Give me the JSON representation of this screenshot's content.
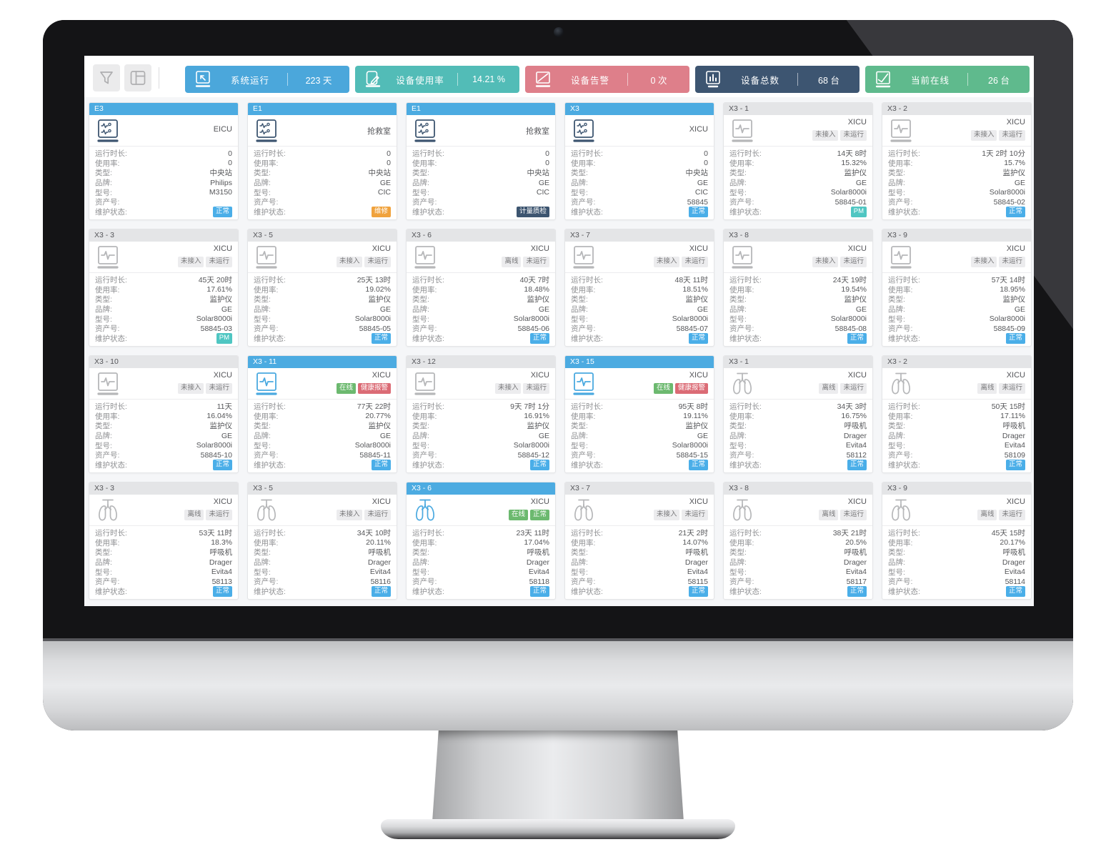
{
  "toolbar": {
    "buttons": [
      {
        "icon": "filter-icon"
      },
      {
        "icon": "layout-icon"
      }
    ],
    "stats": [
      {
        "icon": "system-run-icon",
        "label": "系统运行",
        "value": "223 天",
        "color": "#4BA7DB"
      },
      {
        "icon": "usage-edit-icon",
        "label": "设备使用率",
        "value": "14.21 %",
        "color": "#52BCB7"
      },
      {
        "icon": "alarm-icon",
        "label": "设备告警",
        "value": "0 次",
        "color": "#DE7F8A"
      },
      {
        "icon": "total-bar-chart-icon",
        "label": "设备总数",
        "value": "68 台",
        "color": "#3D5571"
      },
      {
        "icon": "online-check-icon",
        "label": "当前在线",
        "value": "26 台",
        "color": "#5FBA8D"
      }
    ]
  },
  "card_field_labels": {
    "runtime": "运行时长:",
    "usage": "使用率:",
    "type": "类型:",
    "brand": "品牌:",
    "model": "型号:",
    "asset": "资产号:",
    "maintenance": "维护状态:"
  },
  "field_order": [
    "runtime",
    "usage",
    "type",
    "brand",
    "model",
    "asset"
  ],
  "colors": {
    "card_header_active": "#4CABE1",
    "badge_blue": "#4AAEE8",
    "badge_orange": "#F0A23C",
    "badge_navy": "#3D5570",
    "badge_teal": "#4FC6C2",
    "badge_green": "#6CB96F",
    "badge_red": "#DB6B75",
    "badge_gray": "#ECECEE"
  },
  "cards": [
    {
      "id": "E3",
      "location": "EICU",
      "header": "blue",
      "icon": "central-station-icon",
      "badges": [],
      "runtime": "0",
      "usage": "0",
      "type": "中央站",
      "brand": "Philips",
      "model": "M3150",
      "asset": "",
      "maintenance": {
        "text": "正常",
        "style": "blue"
      }
    },
    {
      "id": "E1",
      "location": "抢救室",
      "header": "blue",
      "icon": "central-station-icon",
      "badges": [],
      "runtime": "0",
      "usage": "0",
      "type": "中央站",
      "brand": "GE",
      "model": "CIC",
      "asset": "",
      "maintenance": {
        "text": "维修",
        "style": "orange"
      }
    },
    {
      "id": "E1",
      "location": "抢救室",
      "header": "blue",
      "icon": "central-station-icon",
      "badges": [],
      "runtime": "0",
      "usage": "0",
      "type": "中央站",
      "brand": "GE",
      "model": "CIC",
      "asset": "",
      "maintenance": {
        "text": "计量质检",
        "style": "navy"
      }
    },
    {
      "id": "X3",
      "location": "XICU",
      "header": "blue",
      "icon": "central-station-icon",
      "badges": [],
      "runtime": "0",
      "usage": "0",
      "type": "中央站",
      "brand": "GE",
      "model": "CIC",
      "asset": "58845",
      "maintenance": {
        "text": "正常",
        "style": "blue"
      }
    },
    {
      "id": "X3 - 1",
      "location": "XICU",
      "header": "gray",
      "icon": "monitor-icon",
      "badges": [
        {
          "text": "未接入",
          "style": "gray"
        },
        {
          "text": "未运行",
          "style": "gray"
        }
      ],
      "runtime": "14天 8时",
      "usage": "15.32%",
      "type": "监护仪",
      "brand": "GE",
      "model": "Solar8000i",
      "asset": "58845-01",
      "maintenance": {
        "text": "PM",
        "style": "teal"
      }
    },
    {
      "id": "X3 - 2",
      "location": "XICU",
      "header": "gray",
      "icon": "monitor-icon",
      "badges": [
        {
          "text": "未接入",
          "style": "gray"
        },
        {
          "text": "未运行",
          "style": "gray"
        }
      ],
      "runtime": "1天 2时 10分",
      "usage": "15.7%",
      "type": "监护仪",
      "brand": "GE",
      "model": "Solar8000i",
      "asset": "58845-02",
      "maintenance": {
        "text": "正常",
        "style": "blue"
      }
    },
    {
      "id": "X3 - 3",
      "location": "XICU",
      "header": "gray",
      "icon": "monitor-icon",
      "badges": [
        {
          "text": "未接入",
          "style": "gray"
        },
        {
          "text": "未运行",
          "style": "gray"
        }
      ],
      "runtime": "45天 20时",
      "usage": "17.61%",
      "type": "监护仪",
      "brand": "GE",
      "model": "Solar8000i",
      "asset": "58845-03",
      "maintenance": {
        "text": "PM",
        "style": "teal"
      }
    },
    {
      "id": "X3 - 5",
      "location": "XICU",
      "header": "gray",
      "icon": "monitor-icon",
      "badges": [
        {
          "text": "未接入",
          "style": "gray"
        },
        {
          "text": "未运行",
          "style": "gray"
        }
      ],
      "runtime": "25天 13时",
      "usage": "19.02%",
      "type": "监护仪",
      "brand": "GE",
      "model": "Solar8000i",
      "asset": "58845-05",
      "maintenance": {
        "text": "正常",
        "style": "blue"
      }
    },
    {
      "id": "X3 - 6",
      "location": "XICU",
      "header": "gray",
      "icon": "monitor-icon",
      "badges": [
        {
          "text": "离线",
          "style": "gray"
        },
        {
          "text": "未运行",
          "style": "gray"
        }
      ],
      "runtime": "40天 7时",
      "usage": "18.48%",
      "type": "监护仪",
      "brand": "GE",
      "model": "Solar8000i",
      "asset": "58845-06",
      "maintenance": {
        "text": "正常",
        "style": "blue"
      }
    },
    {
      "id": "X3 - 7",
      "location": "XICU",
      "header": "gray",
      "icon": "monitor-icon",
      "badges": [
        {
          "text": "未接入",
          "style": "gray"
        },
        {
          "text": "未运行",
          "style": "gray"
        }
      ],
      "runtime": "48天 11时",
      "usage": "18.51%",
      "type": "监护仪",
      "brand": "GE",
      "model": "Solar8000i",
      "asset": "58845-07",
      "maintenance": {
        "text": "正常",
        "style": "blue"
      }
    },
    {
      "id": "X3 - 8",
      "location": "XICU",
      "header": "gray",
      "icon": "monitor-icon",
      "badges": [
        {
          "text": "未接入",
          "style": "gray"
        },
        {
          "text": "未运行",
          "style": "gray"
        }
      ],
      "runtime": "24天 19时",
      "usage": "19.54%",
      "type": "监护仪",
      "brand": "GE",
      "model": "Solar8000i",
      "asset": "58845-08",
      "maintenance": {
        "text": "正常",
        "style": "blue"
      }
    },
    {
      "id": "X3 - 9",
      "location": "XICU",
      "header": "gray",
      "icon": "monitor-icon",
      "badges": [
        {
          "text": "未接入",
          "style": "gray"
        },
        {
          "text": "未运行",
          "style": "gray"
        }
      ],
      "runtime": "57天 14时",
      "usage": "18.95%",
      "type": "监护仪",
      "brand": "GE",
      "model": "Solar8000i",
      "asset": "58845-09",
      "maintenance": {
        "text": "正常",
        "style": "blue"
      }
    },
    {
      "id": "X3 - 10",
      "location": "XICU",
      "header": "gray",
      "icon": "monitor-icon",
      "badges": [
        {
          "text": "未接入",
          "style": "gray"
        },
        {
          "text": "未运行",
          "style": "gray"
        }
      ],
      "runtime": "11天",
      "usage": "16.04%",
      "type": "监护仪",
      "brand": "GE",
      "model": "Solar8000i",
      "asset": "58845-10",
      "maintenance": {
        "text": "正常",
        "style": "blue"
      }
    },
    {
      "id": "X3 - 11",
      "location": "XICU",
      "header": "blue",
      "icon": "monitor-icon",
      "badges": [
        {
          "text": "在线",
          "style": "green"
        },
        {
          "text": "健康报警",
          "style": "red"
        }
      ],
      "runtime": "77天 22时",
      "usage": "20.77%",
      "type": "监护仪",
      "brand": "GE",
      "model": "Solar8000i",
      "asset": "58845-11",
      "maintenance": {
        "text": "正常",
        "style": "blue"
      }
    },
    {
      "id": "X3 - 12",
      "location": "XICU",
      "header": "gray",
      "icon": "monitor-icon",
      "badges": [
        {
          "text": "未接入",
          "style": "gray"
        },
        {
          "text": "未运行",
          "style": "gray"
        }
      ],
      "runtime": "9天 7时 1分",
      "usage": "16.91%",
      "type": "监护仪",
      "brand": "GE",
      "model": "Solar8000i",
      "asset": "58845-12",
      "maintenance": {
        "text": "正常",
        "style": "blue"
      }
    },
    {
      "id": "X3 - 15",
      "location": "XICU",
      "header": "blue",
      "icon": "monitor-icon",
      "badges": [
        {
          "text": "在线",
          "style": "green"
        },
        {
          "text": "健康报警",
          "style": "red"
        }
      ],
      "runtime": "95天 8时",
      "usage": "19.11%",
      "type": "监护仪",
      "brand": "GE",
      "model": "Solar8000i",
      "asset": "58845-15",
      "maintenance": {
        "text": "正常",
        "style": "blue"
      }
    },
    {
      "id": "X3 - 1",
      "location": "XICU",
      "header": "gray",
      "icon": "lungs-icon",
      "badges": [
        {
          "text": "离线",
          "style": "gray"
        },
        {
          "text": "未运行",
          "style": "gray"
        }
      ],
      "runtime": "34天 3时",
      "usage": "16.75%",
      "type": "呼吸机",
      "brand": "Drager",
      "model": "Evita4",
      "asset": "58112",
      "maintenance": {
        "text": "正常",
        "style": "blue"
      }
    },
    {
      "id": "X3 - 2",
      "location": "XICU",
      "header": "gray",
      "icon": "lungs-icon",
      "badges": [
        {
          "text": "离线",
          "style": "gray"
        },
        {
          "text": "未运行",
          "style": "gray"
        }
      ],
      "runtime": "50天 15时",
      "usage": "17.11%",
      "type": "呼吸机",
      "brand": "Drager",
      "model": "Evita4",
      "asset": "58109",
      "maintenance": {
        "text": "正常",
        "style": "blue"
      }
    },
    {
      "id": "X3 - 3",
      "location": "XICU",
      "header": "gray",
      "icon": "lungs-icon",
      "badges": [
        {
          "text": "离线",
          "style": "gray"
        },
        {
          "text": "未运行",
          "style": "gray"
        }
      ],
      "runtime": "53天 11时",
      "usage": "18.3%",
      "type": "呼吸机",
      "brand": "Drager",
      "model": "Evita4",
      "asset": "58113",
      "maintenance": {
        "text": "正常",
        "style": "blue"
      }
    },
    {
      "id": "X3 - 5",
      "location": "XICU",
      "header": "gray",
      "icon": "lungs-icon",
      "badges": [
        {
          "text": "未接入",
          "style": "gray"
        },
        {
          "text": "未运行",
          "style": "gray"
        }
      ],
      "runtime": "34天 10时",
      "usage": "20.11%",
      "type": "呼吸机",
      "brand": "Drager",
      "model": "Evita4",
      "asset": "58116",
      "maintenance": {
        "text": "正常",
        "style": "blue"
      }
    },
    {
      "id": "X3 - 6",
      "location": "XICU",
      "header": "blue",
      "icon": "lungs-icon",
      "badges": [
        {
          "text": "在线",
          "style": "green"
        },
        {
          "text": "正常",
          "style": "green"
        }
      ],
      "runtime": "23天 11时",
      "usage": "17.04%",
      "type": "呼吸机",
      "brand": "Drager",
      "model": "Evita4",
      "asset": "58118",
      "maintenance": {
        "text": "正常",
        "style": "blue"
      }
    },
    {
      "id": "X3 - 7",
      "location": "XICU",
      "header": "gray",
      "icon": "lungs-icon",
      "badges": [
        {
          "text": "未接入",
          "style": "gray"
        },
        {
          "text": "未运行",
          "style": "gray"
        }
      ],
      "runtime": "21天 2时",
      "usage": "14.07%",
      "type": "呼吸机",
      "brand": "Drager",
      "model": "Evita4",
      "asset": "58115",
      "maintenance": {
        "text": "正常",
        "style": "blue"
      }
    },
    {
      "id": "X3 - 8",
      "location": "XICU",
      "header": "gray",
      "icon": "lungs-icon",
      "badges": [
        {
          "text": "离线",
          "style": "gray"
        },
        {
          "text": "未运行",
          "style": "gray"
        }
      ],
      "runtime": "38天 21时",
      "usage": "20.5%",
      "type": "呼吸机",
      "brand": "Drager",
      "model": "Evita4",
      "asset": "58117",
      "maintenance": {
        "text": "正常",
        "style": "blue"
      }
    },
    {
      "id": "X3 - 9",
      "location": "XICU",
      "header": "gray",
      "icon": "lungs-icon",
      "badges": [
        {
          "text": "离线",
          "style": "gray"
        },
        {
          "text": "未运行",
          "style": "gray"
        }
      ],
      "runtime": "45天 15时",
      "usage": "20.17%",
      "type": "呼吸机",
      "brand": "Drager",
      "model": "Evita4",
      "asset": "58114",
      "maintenance": {
        "text": "正常",
        "style": "blue"
      }
    }
  ]
}
